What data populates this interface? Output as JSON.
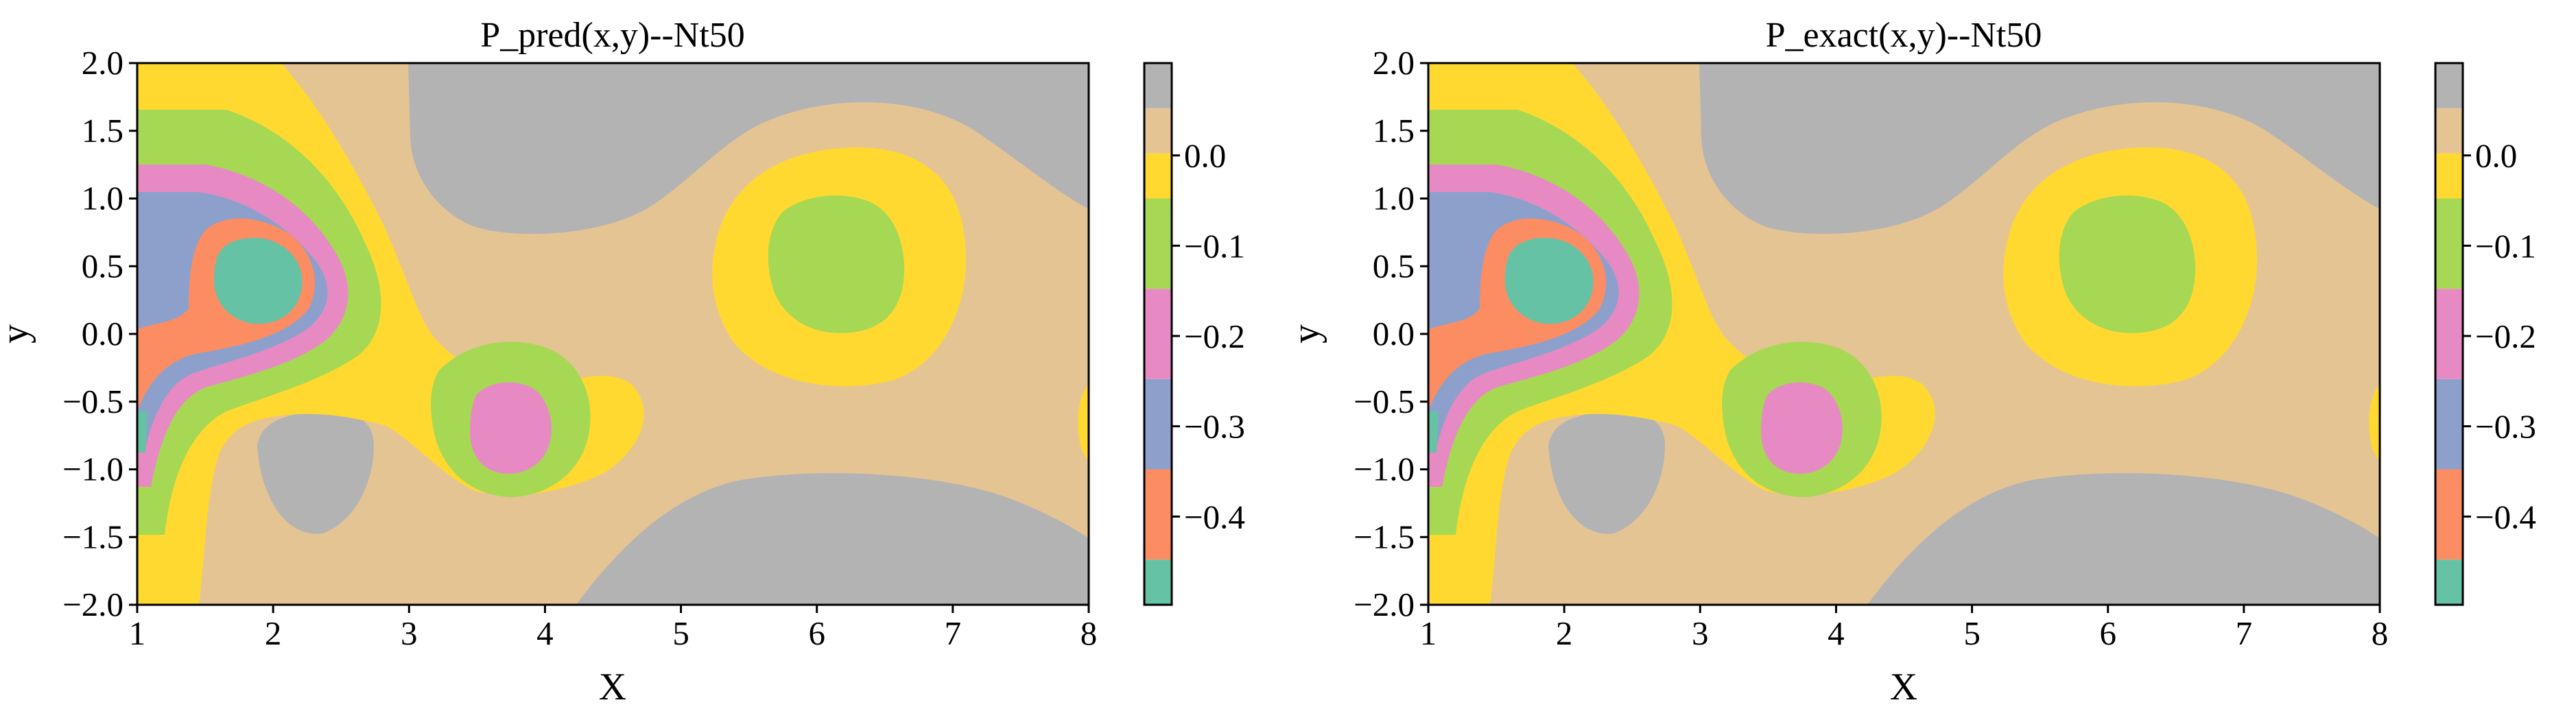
{
  "chart_data": [
    {
      "type": "contour",
      "title": "P_pred(x,y)--Nt50",
      "xlabel": "X",
      "ylabel": "y",
      "xlim": [
        1,
        8
      ],
      "ylim": [
        -2,
        2
      ],
      "xticks": [
        "1",
        "2",
        "3",
        "4",
        "5",
        "6",
        "7",
        "8"
      ],
      "yticks": [
        "2.0",
        "1.5",
        "1.0",
        "0.5",
        "0.0",
        "−0.5",
        "−1.0",
        "−1.5",
        "−2.0"
      ],
      "grid": false,
      "features": [
        {
          "kind": "minimum",
          "x": 1.9,
          "y": 0.35,
          "level": -0.45
        },
        {
          "kind": "minimum",
          "x": 3.8,
          "y": -0.38,
          "level": -0.3
        },
        {
          "kind": "minimum",
          "x": 6.15,
          "y": 0.45,
          "level": -0.2
        },
        {
          "kind": "plateau",
          "x": 4.6,
          "y": 1.5,
          "level": 0.0
        },
        {
          "kind": "plateau",
          "x": 5.6,
          "y": -1.55,
          "level": 0.0
        },
        {
          "kind": "plateau",
          "x": 2.25,
          "y": -0.9,
          "level": 0.0
        }
      ]
    },
    {
      "type": "contour",
      "title": "P_exact(x,y)--Nt50",
      "xlabel": "X",
      "ylabel": "y",
      "xlim": [
        1,
        8
      ],
      "ylim": [
        -2,
        2
      ],
      "xticks": [
        "1",
        "2",
        "3",
        "4",
        "5",
        "6",
        "7",
        "8"
      ],
      "yticks": [
        "2.0",
        "1.5",
        "1.0",
        "0.5",
        "0.0",
        "−0.5",
        "−1.0",
        "−1.5",
        "−2.0"
      ],
      "grid": false,
      "features": [
        {
          "kind": "minimum",
          "x": 1.9,
          "y": 0.35,
          "level": -0.45
        },
        {
          "kind": "minimum",
          "x": 3.8,
          "y": -0.38,
          "level": -0.3
        },
        {
          "kind": "minimum",
          "x": 6.15,
          "y": 0.45,
          "level": -0.2
        },
        {
          "kind": "plateau",
          "x": 4.6,
          "y": 1.5,
          "level": 0.0
        },
        {
          "kind": "plateau",
          "x": 5.6,
          "y": -1.55,
          "level": 0.0
        },
        {
          "kind": "plateau",
          "x": 2.25,
          "y": -0.9,
          "level": 0.0
        }
      ]
    }
  ],
  "colorbar": {
    "tick_labels": [
      "0.0",
      "−0.1",
      "−0.2",
      "−0.3",
      "−0.4"
    ],
    "tick_values": [
      0.0,
      -0.1,
      -0.2,
      -0.3,
      -0.4
    ],
    "bands": [
      {
        "from": -0.5,
        "to": -0.45,
        "color": "#66c2a5"
      },
      {
        "from": -0.45,
        "to": -0.35,
        "color": "#fc8d62"
      },
      {
        "from": -0.35,
        "to": -0.25,
        "color": "#8da0cb"
      },
      {
        "from": -0.25,
        "to": -0.15,
        "color": "#e78ac3"
      },
      {
        "from": -0.15,
        "to": -0.05,
        "color": "#a6d854"
      },
      {
        "from": -0.05,
        "to": 0.0,
        "color": "#ffd92f"
      },
      {
        "from": 0.0,
        "to": 0.05,
        "color": "#e5c494"
      },
      {
        "from": 0.05,
        "to": 0.1,
        "color": "#b3b3b3"
      }
    ]
  }
}
